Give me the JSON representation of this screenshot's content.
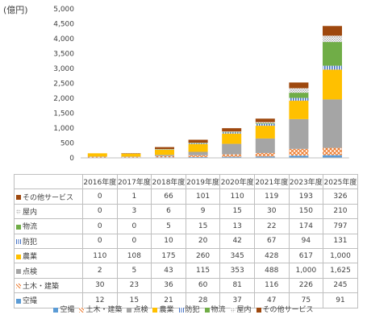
{
  "chart_data": {
    "type": "bar",
    "stacked": true,
    "title": "",
    "unit_label": "(億円)",
    "categories": [
      "2016年度",
      "2017年度",
      "2018年度",
      "2019年度",
      "2020年度",
      "2021年度",
      "2023年度",
      "2025年度"
    ],
    "ylim": [
      0,
      5000
    ],
    "yticks": [
      "0",
      "500",
      "1,000",
      "1,500",
      "2,000",
      "2,500",
      "3,000",
      "3,500",
      "4,000",
      "4,500",
      "5,000"
    ],
    "grid": false,
    "legend_position": "bottom",
    "series": [
      {
        "name": "空撮",
        "color": "#5b9bd5",
        "pattern": "solid",
        "values": [
          12,
          15,
          21,
          28,
          37,
          47,
          75,
          91
        ],
        "labels": [
          "12",
          "15",
          "21",
          "28",
          "37",
          "47",
          "75",
          "91"
        ]
      },
      {
        "name": "土木・建築",
        "color": "#ed7d31",
        "pattern": "cross",
        "values": [
          30,
          23,
          36,
          60,
          81,
          116,
          226,
          245
        ],
        "labels": [
          "30",
          "23",
          "36",
          "60",
          "81",
          "116",
          "226",
          "245"
        ]
      },
      {
        "name": "点検",
        "color": "#a5a5a5",
        "pattern": "solid",
        "values": [
          2,
          5,
          43,
          115,
          353,
          488,
          1000,
          1625
        ],
        "labels": [
          "2",
          "5",
          "43",
          "115",
          "353",
          "488",
          "1,000",
          "1,625"
        ]
      },
      {
        "name": "農業",
        "color": "#ffc000",
        "pattern": "solid",
        "values": [
          110,
          108,
          175,
          260,
          345,
          428,
          617,
          1000
        ],
        "labels": [
          "110",
          "108",
          "175",
          "260",
          "345",
          "428",
          "617",
          "1,000"
        ]
      },
      {
        "name": "防犯",
        "color": "#4472c4",
        "pattern": "vlines",
        "values": [
          0,
          0,
          10,
          20,
          42,
          67,
          94,
          131
        ],
        "labels": [
          "0",
          "0",
          "10",
          "20",
          "42",
          "67",
          "94",
          "131"
        ]
      },
      {
        "name": "物流",
        "color": "#70ad47",
        "pattern": "solid",
        "values": [
          0,
          0,
          5,
          15,
          13,
          22,
          174,
          797
        ],
        "labels": [
          "0",
          "0",
          "5",
          "15",
          "13",
          "22",
          "174",
          "797"
        ]
      },
      {
        "name": "屋内",
        "color": "#a5a5a5",
        "pattern": "dots",
        "values": [
          0,
          3,
          6,
          9,
          15,
          30,
          150,
          210
        ],
        "labels": [
          "0",
          "3",
          "6",
          "9",
          "15",
          "30",
          "150",
          "210"
        ]
      },
      {
        "name": "その他サービス",
        "color": "#9e480e",
        "pattern": "solid",
        "values": [
          0,
          1,
          66,
          101,
          110,
          119,
          193,
          326
        ],
        "labels": [
          "0",
          "1",
          "66",
          "101",
          "110",
          "119",
          "193",
          "326"
        ]
      }
    ]
  }
}
